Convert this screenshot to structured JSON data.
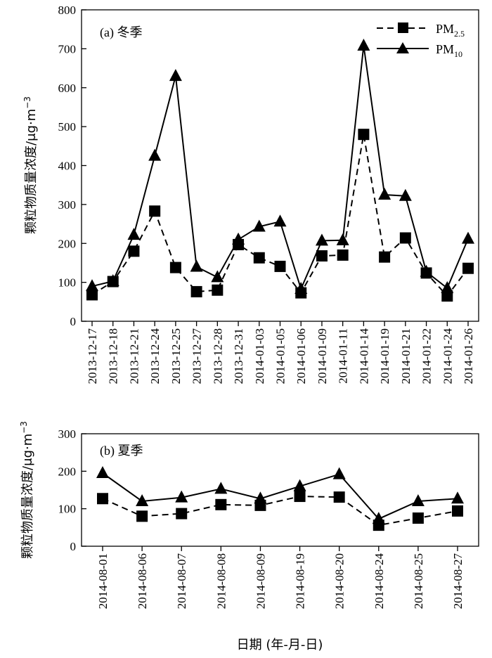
{
  "chart_data": [
    {
      "type": "line",
      "panel_label": "(a) 冬季",
      "ylabel_main": "颗粒物质量浓度/μg·m",
      "ylabel_sup": "−3",
      "ylim": [
        0,
        800
      ],
      "yticks": [
        0,
        100,
        200,
        300,
        400,
        500,
        600,
        700,
        800
      ],
      "categories": [
        "2013-12-17",
        "2013-12-18",
        "2013-12-21",
        "2013-12-24",
        "2013-12-25",
        "2013-12-27",
        "2013-12-28",
        "2013-12-31",
        "2014-01-03",
        "2014-01-05",
        "2014-01-06",
        "2014-01-09",
        "2014-01-11",
        "2014-01-14",
        "2014-01-19",
        "2014-01-21",
        "2014-01-22",
        "2014-01-24",
        "2014-01-26"
      ],
      "series": [
        {
          "name": "PM2.5",
          "name_base": "PM",
          "name_sub": "2.5",
          "marker": "square",
          "dash": true,
          "values": [
            68,
            102,
            180,
            283,
            138,
            76,
            80,
            197,
            163,
            141,
            73,
            168,
            170,
            480,
            165,
            214,
            124,
            65,
            136
          ]
        },
        {
          "name": "PM10",
          "name_base": "PM",
          "name_sub": "10",
          "marker": "triangle",
          "dash": false,
          "values": [
            90,
            103,
            222,
            425,
            630,
            140,
            113,
            210,
            243,
            256,
            83,
            207,
            208,
            708,
            325,
            322,
            127,
            85,
            212
          ]
        }
      ],
      "legend_position": "top-right",
      "grid": false
    },
    {
      "type": "line",
      "panel_label": "(b) 夏季",
      "ylabel_main": "颗粒物质量浓度/μg·m",
      "ylabel_sup": "−3",
      "ylim": [
        0,
        300
      ],
      "yticks": [
        0,
        100,
        200,
        300
      ],
      "xlabel": "日期 (年-月-日)",
      "categories": [
        "2014-08-01",
        "2014-08-06",
        "2014-08-07",
        "2014-08-08",
        "2014-08-09",
        "2014-08-19",
        "2014-08-20",
        "2014-08-24",
        "2014-08-25",
        "2014-08-27"
      ],
      "series": [
        {
          "name": "PM2.5",
          "marker": "square",
          "dash": true,
          "values": [
            127,
            80,
            87,
            111,
            109,
            133,
            131,
            56,
            75,
            94
          ]
        },
        {
          "name": "PM10",
          "marker": "triangle",
          "dash": false,
          "values": [
            195,
            120,
            130,
            153,
            127,
            160,
            192,
            73,
            120,
            127
          ]
        }
      ],
      "grid": false
    }
  ]
}
